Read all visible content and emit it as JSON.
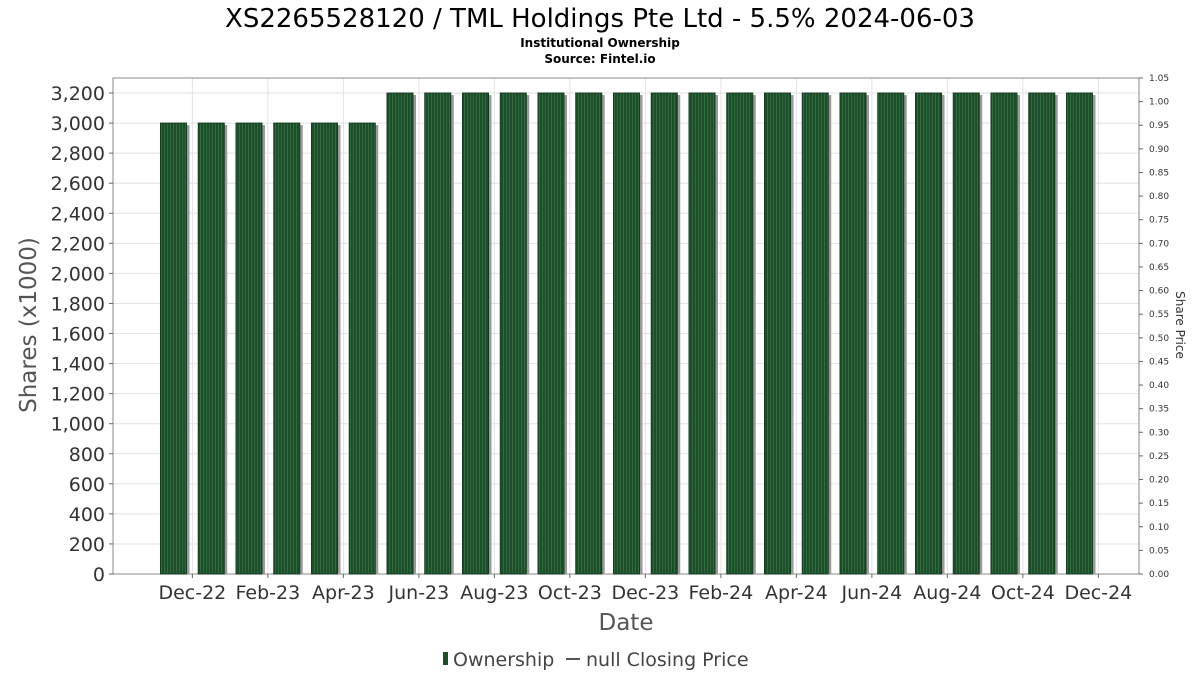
{
  "chart_data": {
    "type": "bar",
    "title": "XS2265528120 / TML Holdings Pte Ltd - 5.5% 2024-06-03",
    "subtitle_lines": [
      "Institutional Ownership",
      "Source: Fintel.io"
    ],
    "xlabel": "Date",
    "ylabel": "Shares (x1000)",
    "y2label": "Share Price",
    "ylim": [
      0,
      3300
    ],
    "yticks": [
      0,
      200,
      400,
      600,
      800,
      1000,
      1200,
      1400,
      1600,
      1800,
      2000,
      2200,
      2400,
      2600,
      2800,
      3000,
      3200
    ],
    "ytick_labels": [
      "0",
      "200",
      "400",
      "600",
      "800",
      "1,000",
      "1,200",
      "1,400",
      "1,600",
      "1,800",
      "2,000",
      "2,200",
      "2,400",
      "2,600",
      "2,800",
      "3,000",
      "3,200"
    ],
    "y2lim": [
      0,
      1.05
    ],
    "y2tick_labels": [
      "0.00",
      "0.05",
      "0.10",
      "0.15",
      "0.20",
      "0.25",
      "0.30",
      "0.35",
      "0.40",
      "0.45",
      "0.50",
      "0.55",
      "0.60",
      "0.65",
      "0.70",
      "0.75",
      "0.80",
      "0.85",
      "0.90",
      "0.95",
      "1.00",
      "1.05"
    ],
    "xtick_labels": [
      "Dec-22",
      "Feb-23",
      "Apr-23",
      "Jun-23",
      "Aug-23",
      "Oct-23",
      "Dec-23",
      "Feb-24",
      "Apr-24",
      "Jun-24",
      "Aug-24",
      "Oct-24",
      "Dec-24"
    ],
    "series": [
      {
        "name": "Ownership",
        "color": "#1e4d2b",
        "values": [
          3000,
          3000,
          3000,
          3000,
          3000,
          3000,
          3200,
          3200,
          3200,
          3200,
          3200,
          3200,
          3200,
          3200,
          3200,
          3200,
          3200,
          3200,
          3200,
          3200,
          3200,
          3200,
          3200,
          3200,
          3200
        ]
      }
    ],
    "legend": {
      "position": "bottom",
      "items": [
        "Ownership",
        "null Closing Price"
      ]
    },
    "grid": true
  }
}
